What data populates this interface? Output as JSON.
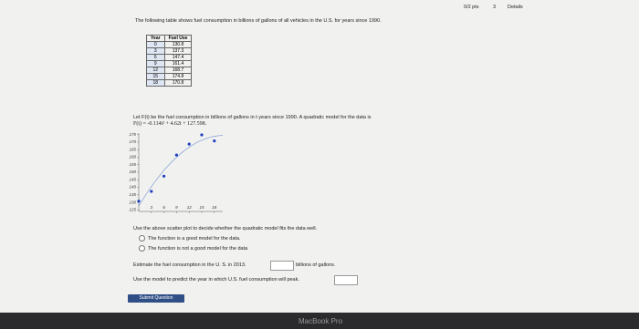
{
  "header": {
    "score": "0/2 pts",
    "retries": "3",
    "details": "Details"
  },
  "intro": "The following table shows fuel consumption in billions of gallons of all vehicles in the U.S. for years since 1990.",
  "table": {
    "headers": [
      "Year",
      "Fuel Use"
    ],
    "rows": [
      [
        0,
        130.8
      ],
      [
        3,
        137.3
      ],
      [
        6,
        147.4
      ],
      [
        9,
        161.4
      ],
      [
        12,
        168.7
      ],
      [
        15,
        174.8
      ],
      [
        18,
        170.8
      ]
    ]
  },
  "model_text": "Let F(t) be the fuel consumption in billions of gallons in t years since 1990. A quadratic model for the data is",
  "formula": {
    "lhs": "F(t) =",
    "a": -0.114,
    "t2": "t² +",
    "b": 4.62,
    "t1": "t +",
    "c": 127.598,
    "end": "."
  },
  "plot": {
    "xlim": [
      0,
      20
    ],
    "ylim": [
      124,
      176
    ],
    "xticks": [
      3,
      6,
      9,
      12,
      15,
      18
    ],
    "yticks": [
      125,
      130,
      135,
      140,
      145,
      150,
      155,
      160,
      165,
      170,
      175
    ]
  },
  "question1": "Use the above scatter plot to decide whether the quadratic model fits the data well.",
  "options": [
    "The function is a good model for the data.",
    "The function is not a good model for the data"
  ],
  "question2": "Estimate the fuel consumption in the U. S. in 2013.",
  "unit": "billions of gallons.",
  "question3": "Use the model to predict the year in which U.S. fuel consumption will peak.",
  "submit": "Submit Question",
  "bezel": "MacBook Pro"
}
